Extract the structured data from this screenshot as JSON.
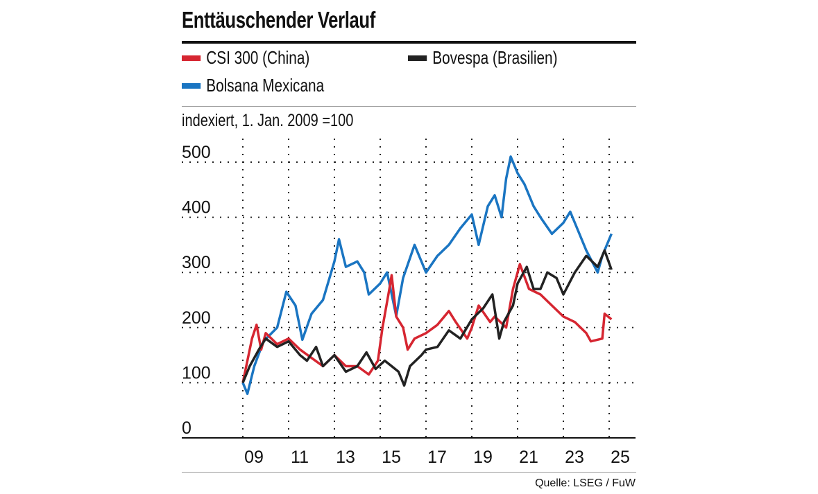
{
  "chart_data": {
    "type": "line",
    "title": "Enttäuschender Verlauf",
    "subtitle": "indexiert, 1. Jan. 2009 =100",
    "source": "Quelle: LSEG / FuW",
    "xlabel": "",
    "ylabel": "",
    "xlim": [
      2008.5,
      2026.0
    ],
    "ylim": [
      0,
      500
    ],
    "grid": true,
    "legend_position": "top",
    "x_ticks": [
      2009,
      2011,
      2013,
      2015,
      2017,
      2019,
      2021,
      2023,
      2025
    ],
    "x_tick_labels": [
      "09",
      "11",
      "13",
      "15",
      "17",
      "19",
      "21",
      "23",
      "25"
    ],
    "y_ticks": [
      0,
      100,
      200,
      300,
      400,
      500
    ],
    "y_tick_labels": [
      "0",
      "100",
      "200",
      "300",
      "400",
      "500"
    ],
    "series": [
      {
        "name": "CSI 300 (China)",
        "color": "#d62631",
        "x": [
          2009.0,
          2009.4,
          2009.6,
          2009.8,
          2010.0,
          2010.5,
          2011.0,
          2011.5,
          2012.0,
          2012.5,
          2013.0,
          2013.5,
          2014.0,
          2014.5,
          2014.9,
          2015.1,
          2015.4,
          2015.5,
          2015.7,
          2016.0,
          2016.2,
          2016.5,
          2017.0,
          2017.5,
          2018.0,
          2018.3,
          2018.8,
          2019.0,
          2019.3,
          2019.8,
          2020.0,
          2020.5,
          2020.8,
          2021.1,
          2021.5,
          2022.0,
          2022.5,
          2023.0,
          2023.5,
          2024.0,
          2024.2,
          2024.7,
          2024.8,
          2025.1
        ],
        "y": [
          100,
          180,
          205,
          160,
          190,
          170,
          180,
          160,
          145,
          130,
          150,
          130,
          130,
          115,
          140,
          200,
          270,
          295,
          220,
          200,
          160,
          180,
          190,
          205,
          230,
          210,
          180,
          200,
          240,
          210,
          220,
          200,
          270,
          315,
          270,
          260,
          240,
          220,
          210,
          190,
          175,
          180,
          225,
          215
        ]
      },
      {
        "name": "Bovespa (Brasilien)",
        "color": "#222222",
        "x": [
          2009.0,
          2009.3,
          2009.7,
          2010.0,
          2010.5,
          2011.0,
          2011.5,
          2011.8,
          2012.2,
          2012.5,
          2013.0,
          2013.5,
          2014.0,
          2014.4,
          2014.8,
          2015.2,
          2015.5,
          2015.8,
          2016.05,
          2016.3,
          2016.8,
          2017.0,
          2017.5,
          2018.0,
          2018.5,
          2019.0,
          2019.5,
          2019.9,
          2020.2,
          2020.4,
          2020.8,
          2021.0,
          2021.4,
          2021.7,
          2022.0,
          2022.3,
          2022.7,
          2023.0,
          2023.5,
          2024.0,
          2024.5,
          2024.8,
          2025.1
        ],
        "y": [
          100,
          130,
          160,
          180,
          165,
          175,
          150,
          140,
          165,
          130,
          150,
          120,
          130,
          155,
          125,
          140,
          130,
          120,
          95,
          130,
          150,
          160,
          165,
          195,
          180,
          215,
          235,
          260,
          180,
          210,
          240,
          280,
          310,
          270,
          270,
          300,
          290,
          260,
          300,
          330,
          310,
          340,
          305
        ]
      },
      {
        "name": "Bolsana Mexicana",
        "color": "#1a75c2",
        "x": [
          2009.0,
          2009.2,
          2009.5,
          2009.9,
          2010.5,
          2010.9,
          2011.3,
          2011.6,
          2012.0,
          2012.5,
          2013.0,
          2013.2,
          2013.5,
          2014.0,
          2014.3,
          2014.5,
          2015.0,
          2015.3,
          2015.7,
          2016.0,
          2016.5,
          2017.0,
          2017.5,
          2018.0,
          2018.5,
          2019.0,
          2019.3,
          2019.7,
          2020.0,
          2020.3,
          2020.5,
          2020.7,
          2021.0,
          2021.3,
          2021.7,
          2022.0,
          2022.5,
          2023.0,
          2023.3,
          2023.6,
          2024.0,
          2024.5,
          2024.7,
          2025.0,
          2025.1
        ],
        "y": [
          100,
          80,
          130,
          175,
          200,
          265,
          240,
          178,
          225,
          250,
          320,
          360,
          310,
          320,
          300,
          260,
          280,
          300,
          221,
          290,
          350,
          300,
          330,
          350,
          380,
          405,
          350,
          420,
          440,
          400,
          470,
          510,
          480,
          460,
          420,
          400,
          370,
          390,
          410,
          380,
          340,
          300,
          330,
          360,
          370
        ]
      }
    ]
  }
}
